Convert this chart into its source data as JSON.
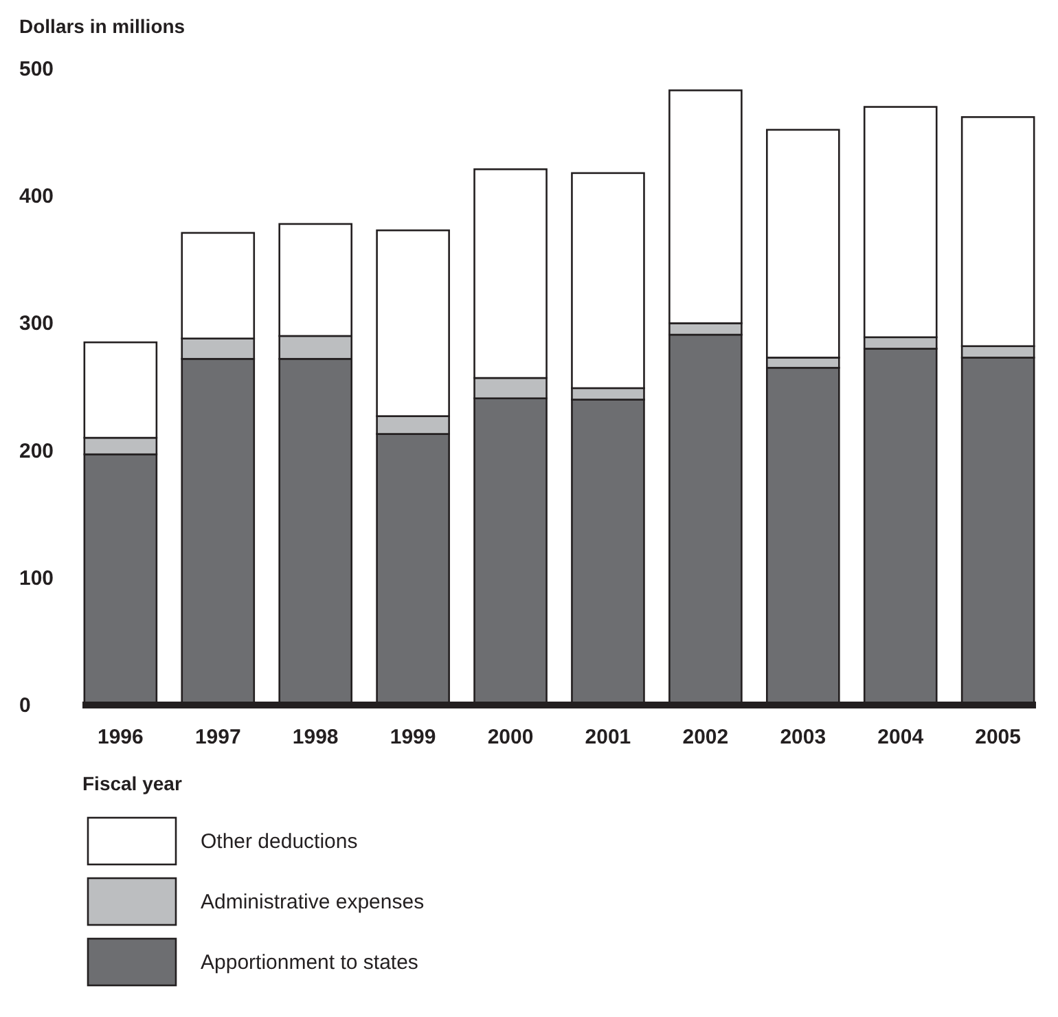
{
  "chart_data": {
    "type": "bar",
    "ylabel": "Dollars in millions",
    "xlabel": "Fiscal year",
    "categories": [
      "1996",
      "1997",
      "1998",
      "1999",
      "2000",
      "2001",
      "2002",
      "2003",
      "2004",
      "2005"
    ],
    "stacked": true,
    "ylim": [
      0,
      500
    ],
    "yticks": [
      0,
      100,
      200,
      300,
      400,
      500
    ],
    "grid": false,
    "legend": "bottom",
    "series": [
      {
        "name": "Apportionment to states",
        "color": "#6d6e71",
        "values": [
          197,
          272,
          272,
          213,
          241,
          240,
          291,
          265,
          280,
          273
        ]
      },
      {
        "name": "Administrative expenses",
        "color": "#bcbec0",
        "values": [
          13,
          16,
          18,
          14,
          16,
          9,
          9,
          8,
          9,
          9
        ]
      },
      {
        "name": "Other deductions",
        "color": "#ffffff",
        "values": [
          75,
          83,
          88,
          146,
          164,
          169,
          183,
          179,
          181,
          180
        ]
      }
    ]
  }
}
